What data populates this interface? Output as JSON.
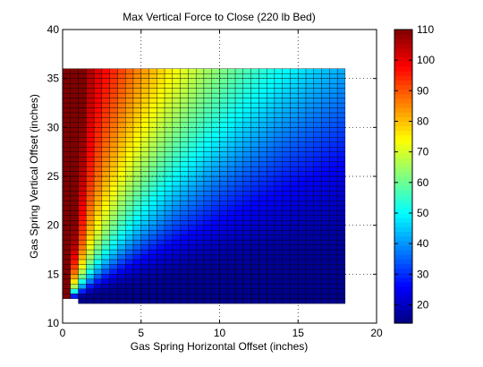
{
  "chart_data": {
    "type": "heatmap",
    "title": "Max Vertical Force to Close (220 lb Bed)",
    "xlabel": "Gas Spring Horizontal Offset (inches)",
    "ylabel": "Gas Spring Vertical Offset (inches)",
    "xlim": [
      0,
      20
    ],
    "ylim": [
      10,
      40
    ],
    "xticks": [
      "0",
      "5",
      "10",
      "15",
      "20"
    ],
    "yticks": [
      "10",
      "15",
      "20",
      "25",
      "30",
      "35",
      "40"
    ],
    "grid": true,
    "colormap": "jet",
    "colorbar": {
      "min": 14,
      "max": 110,
      "ticks": [
        "20",
        "30",
        "40",
        "50",
        "60",
        "70",
        "80",
        "90",
        "100",
        "110"
      ]
    },
    "data_extent": {
      "x": [
        0,
        18
      ],
      "y": [
        12,
        36
      ],
      "step": 0.5
    },
    "value_range": [
      14,
      110
    ],
    "empty_region": "lower-left triangle below the line from (0, 12) to (1, 12) is blank"
  }
}
